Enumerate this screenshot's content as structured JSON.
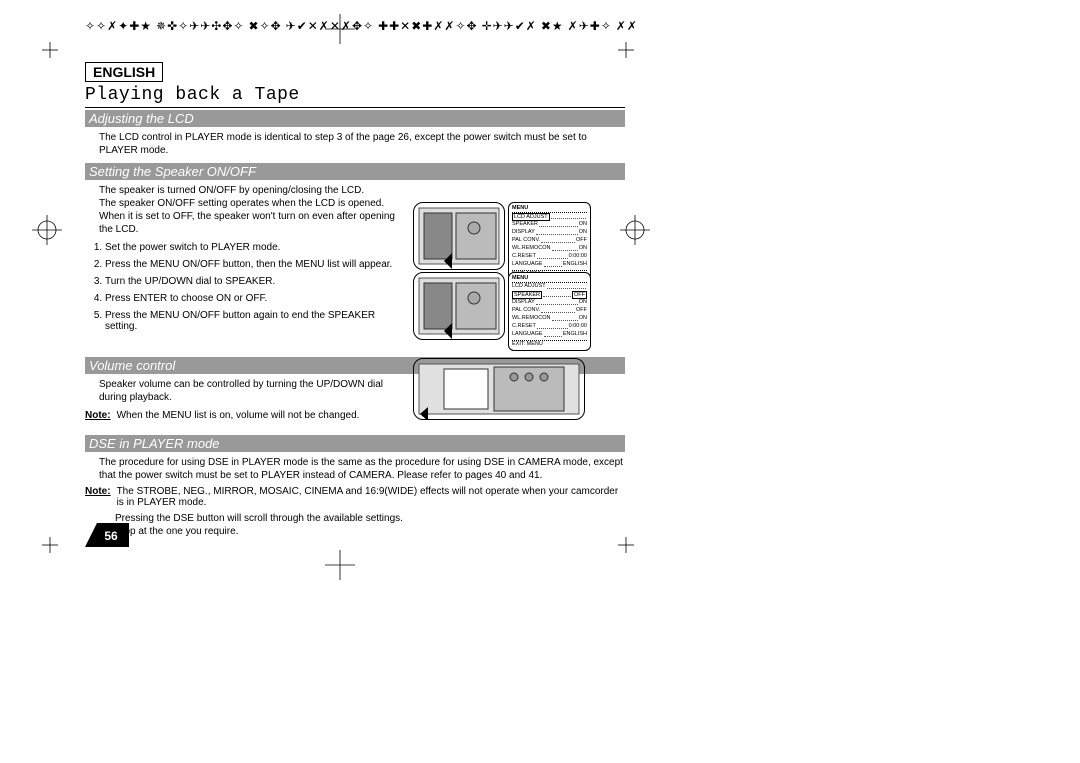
{
  "header_script": "✧✧✗✦✚★ ✵✜✧✈✈✣✥✧ ✖✧✥ ✈✔✕✗✕✗✥✧ ✚✚✕✖✚✗✗✧✥ ✛✈✈✔✗ ✖★ ✗✈✚✧ ✗✗",
  "language": "ENGLISH",
  "title": "Playing back a Tape",
  "sections": {
    "adjusting": {
      "header": "Adjusting the LCD",
      "text": "The LCD control in PLAYER mode is identical to step 3 of the page 26, except the power switch must be set to PLAYER mode."
    },
    "speaker": {
      "header": "Setting the Speaker ON/OFF",
      "intro": "The speaker is turned ON/OFF by opening/closing the LCD.\nThe speaker ON/OFF setting operates when the LCD is opened. When it is set to OFF, the speaker won't turn on even after opening the LCD.",
      "steps": [
        "Set the power switch to PLAYER mode.",
        "Press the MENU ON/OFF button, then the MENU list will appear.",
        "Turn the UP/DOWN dial to SPEAKER.",
        "Press ENTER  to choose ON or OFF.",
        "Press the MENU ON/OFF button again to end the SPEAKER setting."
      ]
    },
    "volume": {
      "header": "Volume control",
      "text": "Speaker volume can be controlled by turning the UP/DOWN dial during playback.",
      "note_label": "Note:",
      "note_text": "When the MENU list is on, volume will not be changed."
    },
    "dse": {
      "header": "DSE in PLAYER mode",
      "text": "The procedure for using DSE in PLAYER mode is the same as the procedure for using DSE in CAMERA mode, except that the power switch must be set to PLAYER instead of CAMERA. Please refer to pages 40 and 41.",
      "note_label": "Note:",
      "note_text": "The STROBE, NEG., MIRROR, MOSAIC, CINEMA and 16:9(WIDE) effects will not operate when your camcorder is in PLAYER mode.",
      "after": "Pressing the DSE button will scroll through the available settings.\nStop at the one you require."
    }
  },
  "menu1": {
    "title": "MENU",
    "rows": [
      {
        "l": "LCD ADJUST",
        "r": "",
        "sel": true
      },
      {
        "l": "SPEAKER",
        "r": "ON"
      },
      {
        "l": "DISPLAY",
        "r": "ON"
      },
      {
        "l": "PAL CONV.",
        "r": "OFF"
      },
      {
        "l": "WL.REMOCON",
        "r": "ON"
      },
      {
        "l": "C.RESET",
        "r": "0:00:00"
      },
      {
        "l": "LANGUAGE",
        "r": "ENGLISH"
      }
    ],
    "exit": "EXIT: MENU"
  },
  "menu2": {
    "title": "MENU",
    "rows": [
      {
        "l": "LCD ADJUST",
        "r": ""
      },
      {
        "l": "SPEAKER",
        "r": "OFF",
        "sel": true
      },
      {
        "l": "DISPLAY",
        "r": "ON"
      },
      {
        "l": "PAL CONV.",
        "r": "OFF"
      },
      {
        "l": "WL.REMOCON",
        "r": "ON"
      },
      {
        "l": "C.RESET",
        "r": "0:00:00"
      },
      {
        "l": "LANGUAGE",
        "r": "ENGLISH"
      }
    ],
    "exit": "EXIT: MENU"
  },
  "page_number": "56"
}
